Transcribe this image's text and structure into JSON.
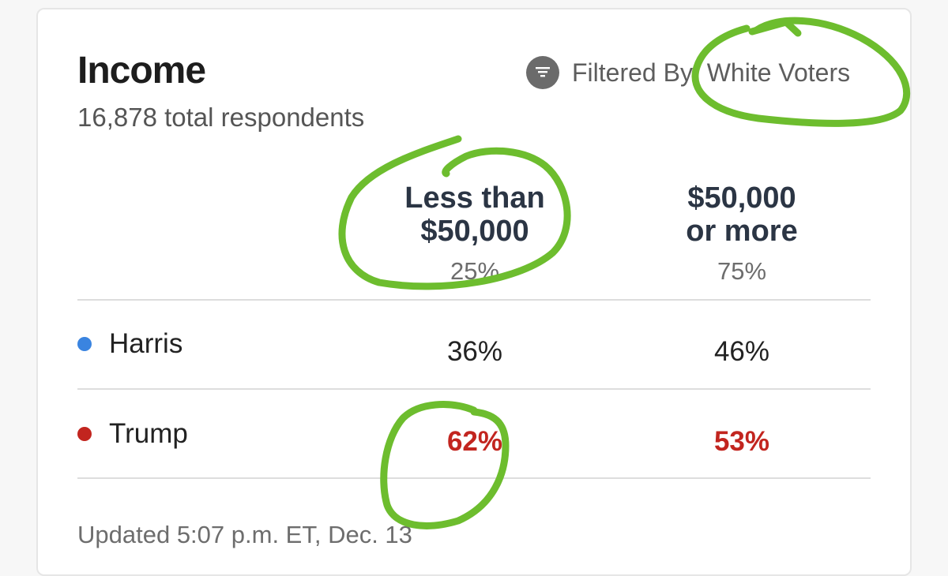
{
  "card": {
    "title": "Income",
    "respondents": "16,878 total respondents",
    "filter": {
      "icon": "filter-icon",
      "label": "Filtered By: White Voters"
    }
  },
  "columns": [
    {
      "label_line1": "Less than",
      "label_line2": "$50,000",
      "share": "25%"
    },
    {
      "label_line1": "$50,000",
      "label_line2": "or more",
      "share": "75%"
    }
  ],
  "rows": [
    {
      "candidate": "Harris",
      "dot_color": "#3a84e0",
      "values": [
        "36%",
        "46%"
      ]
    },
    {
      "candidate": "Trump",
      "dot_color": "#c2251f",
      "values": [
        "62%",
        "53%"
      ]
    }
  ],
  "updated": "Updated 5:07 p.m. ET, Dec. 13",
  "annotation_color": "#6dbd2e"
}
